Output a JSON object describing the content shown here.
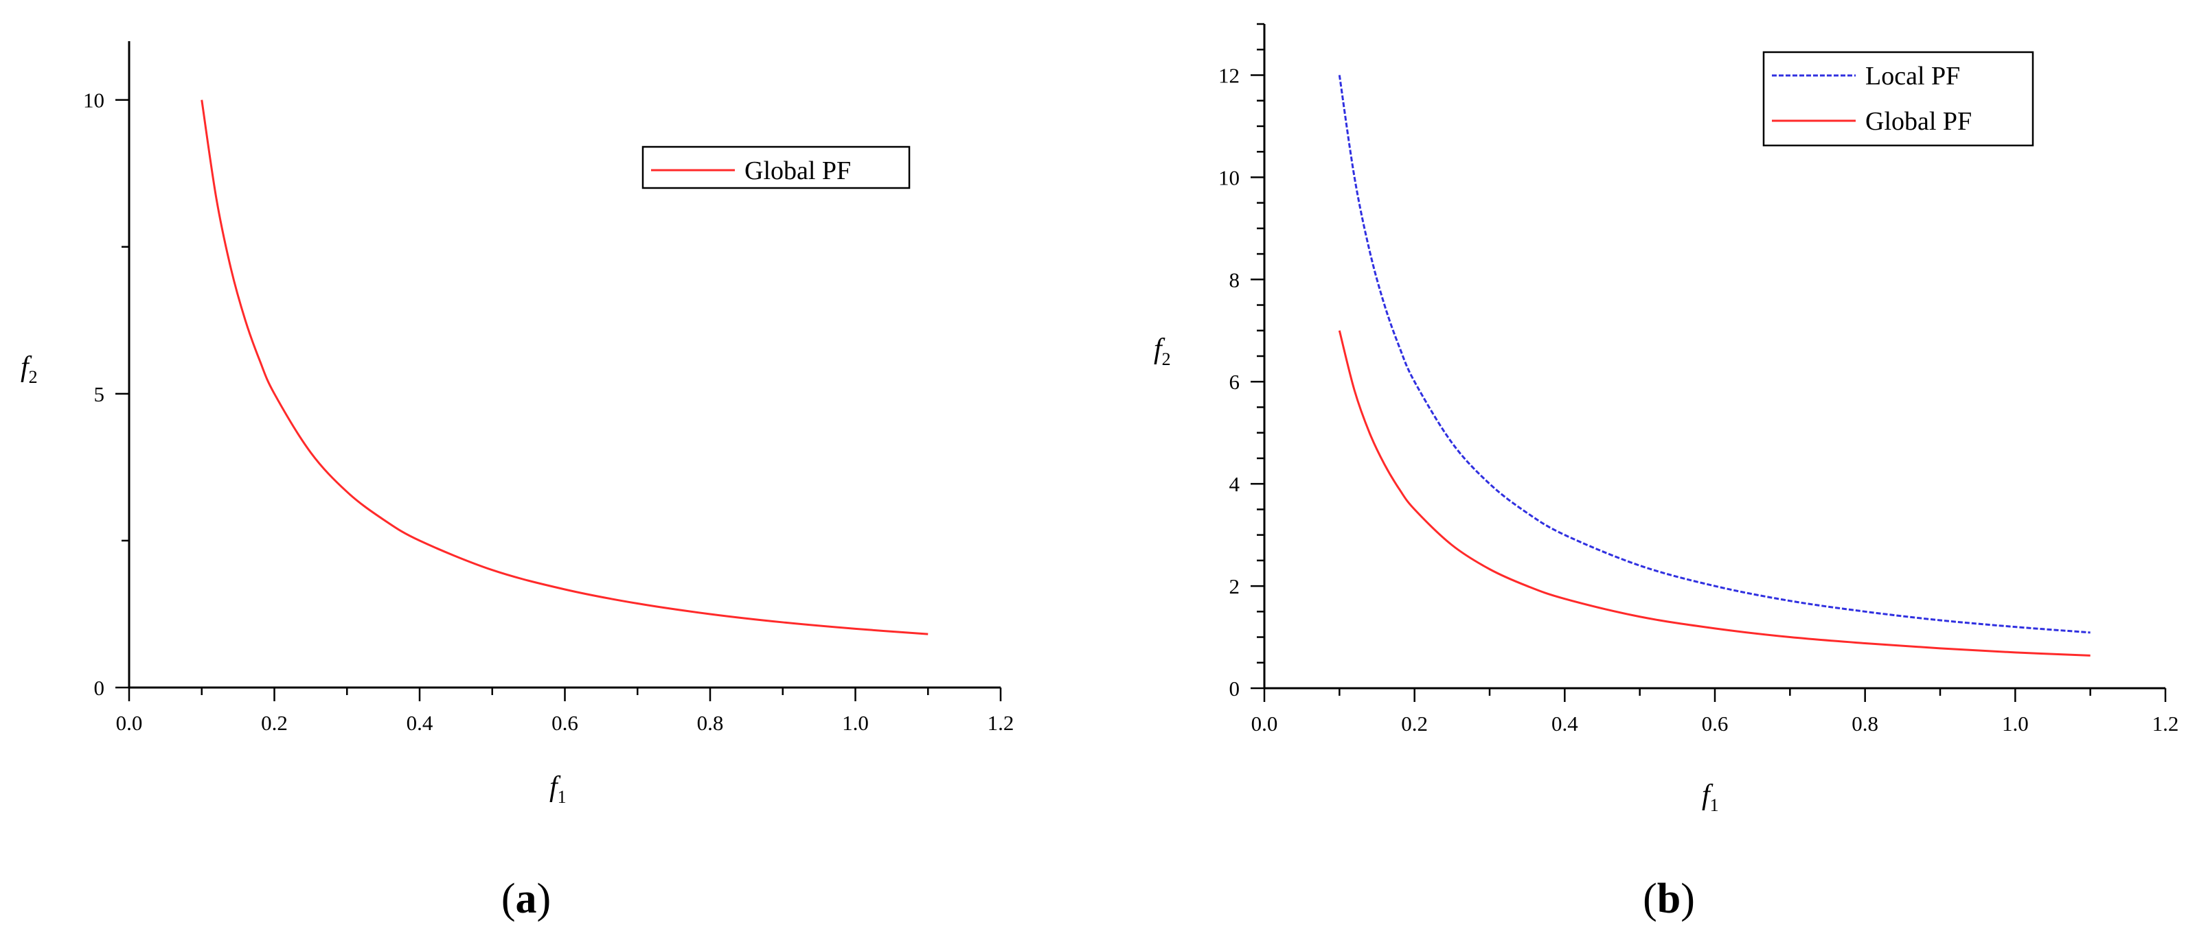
{
  "chart_data": [
    {
      "type": "line",
      "panel_label": "a",
      "xlabel": {
        "main": "f",
        "sub": "1"
      },
      "ylabel": {
        "main": "f",
        "sub": "2"
      },
      "xlim": [
        0.0,
        1.2
      ],
      "ylim": [
        0,
        11
      ],
      "x_ticks": [
        0.0,
        0.2,
        0.4,
        0.6,
        0.8,
        1.0,
        1.2
      ],
      "x_tick_labels": [
        "0.0",
        "0.2",
        "0.4",
        "0.6",
        "0.8",
        "1.0",
        "1.2"
      ],
      "y_ticks": [
        0,
        5,
        10
      ],
      "y_tick_labels": [
        "0",
        "5",
        "10"
      ],
      "y_minor_step": 2.5,
      "x_minor_step": 0.1,
      "grid": false,
      "legend_position": "top-right",
      "series": [
        {
          "name": "Global PF",
          "color": "#ff2a2a",
          "dash": "solid",
          "x": [
            0.1,
            0.12,
            0.14,
            0.16,
            0.18,
            0.2,
            0.25,
            0.3,
            0.35,
            0.4,
            0.5,
            0.6,
            0.7,
            0.8,
            0.9,
            1.0,
            1.1
          ],
          "y": [
            10.0,
            8.33,
            7.14,
            6.25,
            5.56,
            5.0,
            4.0,
            3.33,
            2.86,
            2.5,
            2.0,
            1.67,
            1.43,
            1.25,
            1.11,
            1.0,
            0.91
          ]
        }
      ]
    },
    {
      "type": "line",
      "panel_label": "b",
      "xlabel": {
        "main": "f",
        "sub": "1"
      },
      "ylabel": {
        "main": "f",
        "sub": "2"
      },
      "xlim": [
        0.0,
        1.2
      ],
      "ylim": [
        0,
        13
      ],
      "x_ticks": [
        0.0,
        0.2,
        0.4,
        0.6,
        0.8,
        1.0,
        1.2
      ],
      "x_tick_labels": [
        "0.0",
        "0.2",
        "0.4",
        "0.6",
        "0.8",
        "1.0",
        "1.2"
      ],
      "y_ticks": [
        0,
        2,
        4,
        6,
        8,
        10,
        12
      ],
      "y_tick_labels": [
        "0",
        "2",
        "4",
        "6",
        "8",
        "10",
        "12"
      ],
      "y_minor_step": 0.5,
      "x_minor_step": 0.1,
      "grid": false,
      "legend_position": "top-right",
      "series": [
        {
          "name": "Local PF",
          "color": "#3030e0",
          "dash": "dashed",
          "x": [
            0.1,
            0.12,
            0.14,
            0.16,
            0.18,
            0.2,
            0.25,
            0.3,
            0.35,
            0.4,
            0.5,
            0.6,
            0.7,
            0.8,
            0.9,
            1.0,
            1.1
          ],
          "y": [
            12.0,
            10.0,
            8.57,
            7.5,
            6.67,
            6.0,
            4.8,
            4.0,
            3.43,
            3.0,
            2.4,
            2.0,
            1.71,
            1.5,
            1.33,
            1.2,
            1.09
          ]
        },
        {
          "name": "Global PF",
          "color": "#ff2a2a",
          "dash": "solid",
          "x": [
            0.1,
            0.12,
            0.14,
            0.16,
            0.18,
            0.2,
            0.25,
            0.3,
            0.35,
            0.4,
            0.5,
            0.6,
            0.7,
            0.8,
            0.9,
            1.0,
            1.1
          ],
          "y": [
            7.0,
            5.83,
            5.0,
            4.38,
            3.89,
            3.5,
            2.8,
            2.33,
            2.0,
            1.75,
            1.4,
            1.17,
            1.0,
            0.88,
            0.78,
            0.7,
            0.64
          ]
        }
      ]
    }
  ]
}
